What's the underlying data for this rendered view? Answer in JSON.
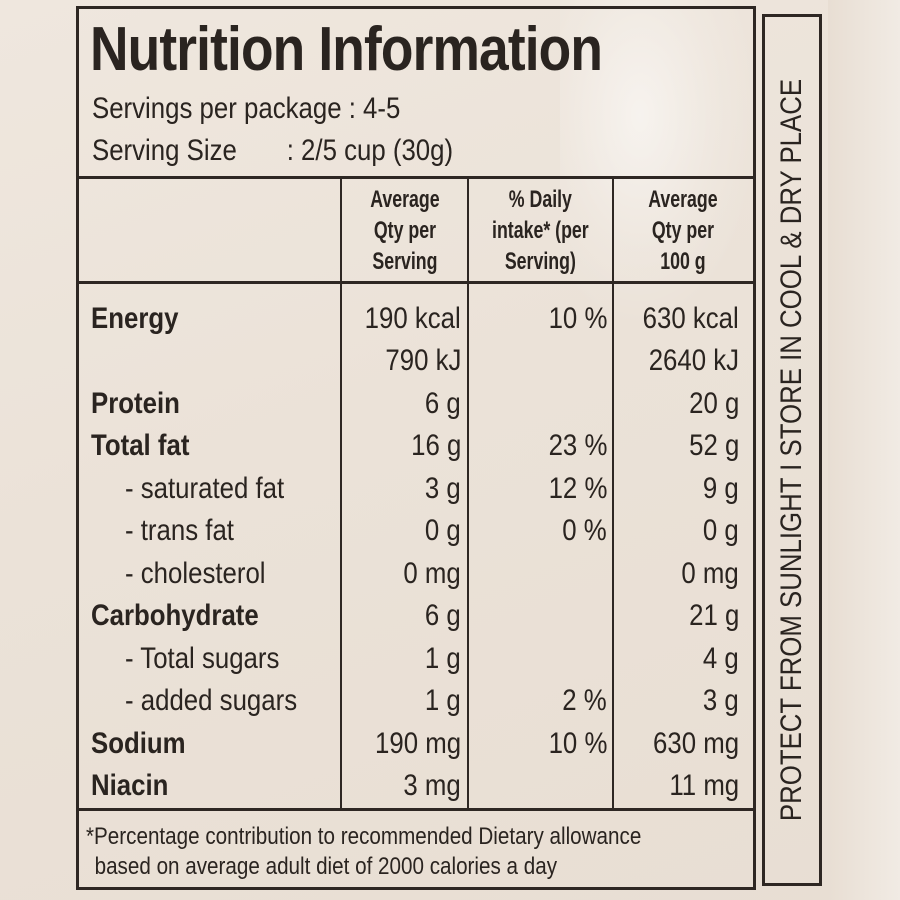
{
  "title": "Nutrition Information",
  "servings_per_package": "Servings per package : 4-5",
  "serving_size_label": "Serving Size",
  "serving_size_value": ": 2/5 cup (30g)",
  "headers": {
    "col1": [
      "Average",
      "Qty per",
      "Serving"
    ],
    "col2": [
      "% Daily",
      "intake* (per",
      "Serving)"
    ],
    "col3": [
      "Average",
      "Qty per",
      "100 g"
    ]
  },
  "rows": [
    {
      "name": "Energy",
      "per_serving": "190 kcal",
      "daily": "10 %",
      "per_100g": "630 kcal"
    },
    {
      "name": "",
      "per_serving": "790 kJ",
      "daily": "",
      "per_100g": "2640 kJ"
    },
    {
      "name": "Protein",
      "per_serving": "6 g",
      "daily": "",
      "per_100g": "20 g"
    },
    {
      "name": "Total fat",
      "per_serving": "16 g",
      "daily": "23 %",
      "per_100g": "52 g"
    },
    {
      "name": "- saturated fat",
      "per_serving": "3 g",
      "daily": "12 %",
      "per_100g": "9 g"
    },
    {
      "name": "- trans fat",
      "per_serving": "0 g",
      "daily": "0 %",
      "per_100g": "0 g"
    },
    {
      "name": "- cholesterol",
      "per_serving": "0 mg",
      "daily": "",
      "per_100g": "0 mg"
    },
    {
      "name": "Carbohydrate",
      "per_serving": "6 g",
      "daily": "",
      "per_100g": "21 g"
    },
    {
      "name": "- Total sugars",
      "per_serving": "1 g",
      "daily": "",
      "per_100g": "4 g"
    },
    {
      "name": "- added sugars",
      "per_serving": "1 g",
      "daily": "2 %",
      "per_100g": "3 g"
    },
    {
      "name": "Sodium",
      "per_serving": "190 mg",
      "daily": "10 %",
      "per_100g": "630 mg"
    },
    {
      "name": "Niacin",
      "per_serving": "3 mg",
      "daily": "",
      "per_100g": "11 mg"
    }
  ],
  "footnote": {
    "line1": "*Percentage contribution to recommended Dietary allowance",
    "line2": "based on average adult diet of 2000 calories a day"
  },
  "side_text": "PROTECT FROM SUNLIGHT I STORE IN COOL & DRY PLACE"
}
